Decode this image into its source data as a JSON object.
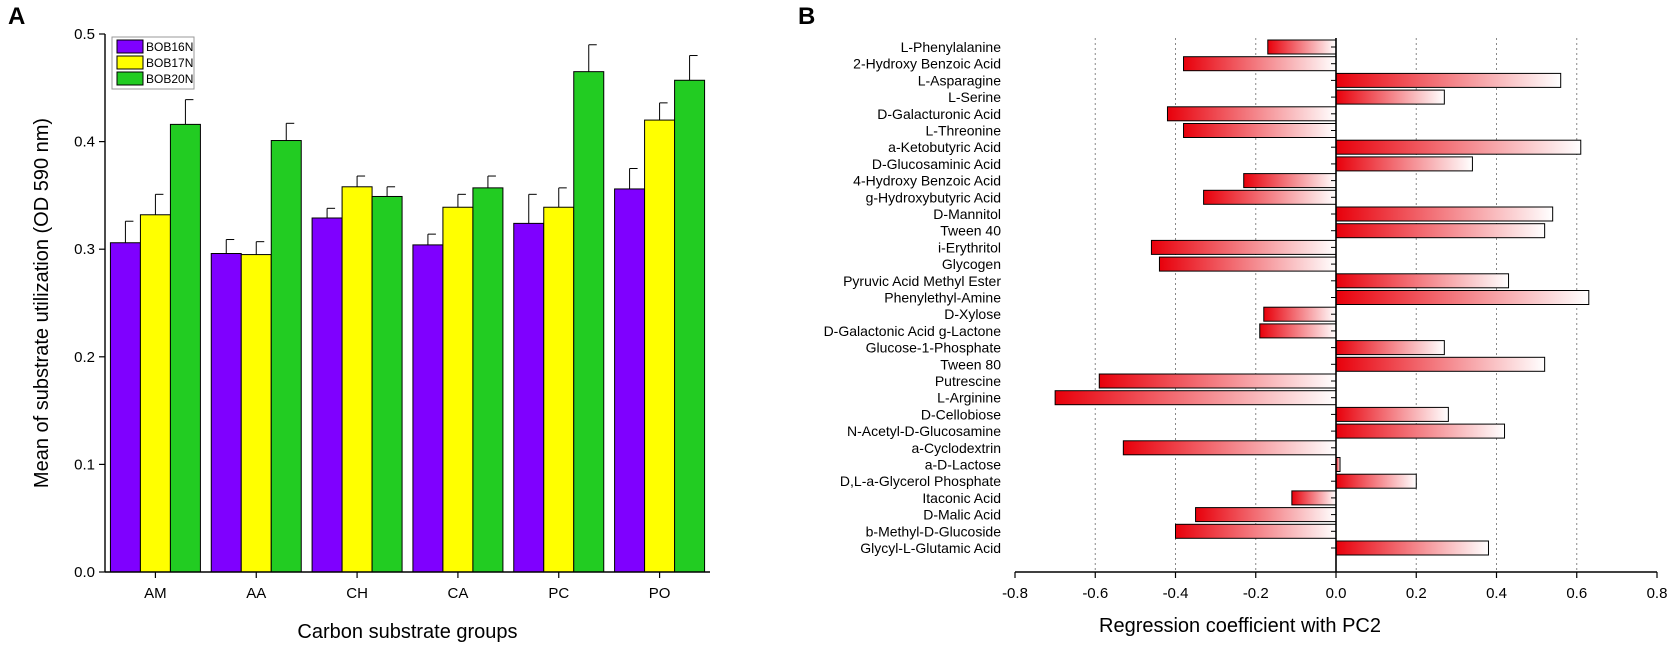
{
  "chart_data": [
    {
      "panel": "A",
      "type": "bar",
      "xlabel": "Carbon substrate groups",
      "ylabel": "Mean of substrate utilization (OD 590 nm)",
      "ylim": [
        0,
        0.5
      ],
      "yticks": [
        "0.0",
        "0.1",
        "0.2",
        "0.3",
        "0.4",
        "0.5"
      ],
      "categories": [
        "AM",
        "AA",
        "CH",
        "CA",
        "PC",
        "PO"
      ],
      "legend_position": "top-left",
      "series": [
        {
          "name": "BOB16N",
          "color": "#7f00ff",
          "values": [
            0.306,
            0.296,
            0.329,
            0.304,
            0.324,
            0.356
          ],
          "errors": [
            0.02,
            0.013,
            0.009,
            0.01,
            0.027,
            0.019
          ]
        },
        {
          "name": "BOB17N",
          "color": "#ffff00",
          "values": [
            0.332,
            0.295,
            0.358,
            0.339,
            0.339,
            0.42
          ],
          "errors": [
            0.019,
            0.012,
            0.01,
            0.012,
            0.018,
            0.016
          ]
        },
        {
          "name": "BOB20N",
          "color": "#22cc22",
          "values": [
            0.416,
            0.401,
            0.349,
            0.357,
            0.465,
            0.457
          ],
          "errors": [
            0.023,
            0.016,
            0.009,
            0.011,
            0.025,
            0.023
          ]
        }
      ]
    },
    {
      "panel": "B",
      "type": "bar",
      "orientation": "horizontal",
      "xlabel": "Regression coefficient with PC2",
      "xlim": [
        -0.8,
        0.8
      ],
      "xticks": [
        "-0.8",
        "-0.6",
        "-0.4",
        "-0.2",
        "0.0",
        "0.2",
        "0.4",
        "0.6",
        "0.8"
      ],
      "grid": "vertical dotted",
      "categories": [
        "L-Phenylalanine",
        "2-Hydroxy Benzoic Acid",
        "L-Asparagine",
        "L-Serine",
        "D-Galacturonic Acid",
        "L-Threonine",
        "a-Ketobutyric Acid",
        "D-Glucosaminic Acid",
        "4-Hydroxy Benzoic Acid",
        "g-Hydroxybutyric Acid",
        "D-Mannitol",
        "Tween 40",
        "i-Erythritol",
        "Glycogen",
        "Pyruvic Acid Methyl Ester",
        "Phenylethyl-Amine",
        "D-Xylose",
        "D-Galactonic Acid g-Lactone",
        "Glucose-1-Phosphate",
        "Tween 80",
        "Putrescine",
        "L-Arginine",
        "D-Cellobiose",
        "N-Acetyl-D-Glucosamine",
        "a-Cyclodextrin",
        "a-D-Lactose",
        "D,L-a-Glycerol Phosphate",
        "Itaconic Acid",
        "D-Malic Acid",
        "b-Methyl-D-Glucoside",
        "Glycyl-L-Glutamic Acid"
      ],
      "values": [
        -0.17,
        -0.38,
        0.56,
        0.27,
        -0.42,
        -0.38,
        0.61,
        0.34,
        -0.23,
        -0.33,
        0.54,
        0.52,
        -0.46,
        -0.44,
        0.43,
        0.63,
        -0.18,
        -0.19,
        0.27,
        0.52,
        -0.59,
        -0.7,
        0.28,
        0.42,
        -0.53,
        0.01,
        0.2,
        -0.11,
        -0.35,
        -0.4,
        0.38
      ]
    }
  ]
}
